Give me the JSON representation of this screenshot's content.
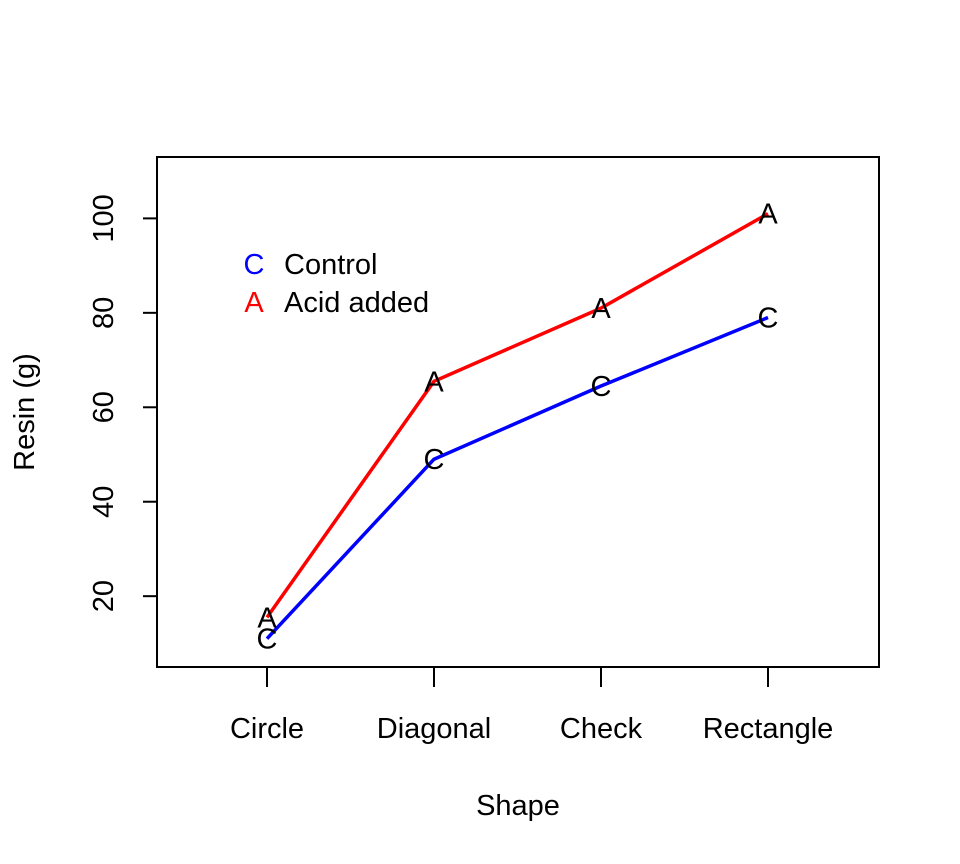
{
  "chart_data": {
    "type": "line",
    "xlabel": "Shape",
    "ylabel": "Resin (g)",
    "categories": [
      "Circle",
      "Diagonal",
      "Check",
      "Rectangle"
    ],
    "ylim": [
      5,
      113
    ],
    "yticks": [
      20,
      40,
      60,
      80,
      100
    ],
    "grid": false,
    "legend_position": "top-left",
    "series": [
      {
        "name": "Control",
        "symbol": "C",
        "color": "#0000ff",
        "values": [
          11,
          49,
          64.5,
          79
        ]
      },
      {
        "name": "Acid added",
        "symbol": "A",
        "color": "#ff0000",
        "values": [
          15.5,
          65.5,
          81,
          101
        ]
      }
    ]
  }
}
